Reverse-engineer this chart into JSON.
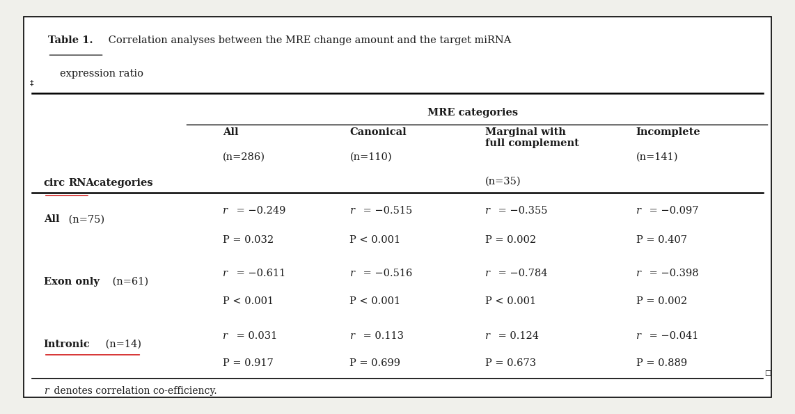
{
  "title_bold": "Table 1.",
  "title_normal": " Correlation analyses between the MRE change amount and the target miRNA",
  "title_line2": "expression ratio",
  "mre_header": "MRE categories",
  "col_header_bold": [
    "All",
    "Canonical",
    "Marginal with\nfull complement",
    "Incomplete"
  ],
  "col_header_n": [
    "(n=286)",
    "(n=110)",
    "(n=35)",
    "(n=141)"
  ],
  "row_headers": [
    {
      "bold": "All",
      "normal": " (n=75)",
      "underline": false
    },
    {
      "bold": "Exon only",
      "normal": " (n=61)",
      "underline": false
    },
    {
      "bold": "Intronic",
      "normal": " (n=14)",
      "underline": true
    }
  ],
  "data": [
    [
      [
        "r",
        " = −0.249",
        "P = 0.032"
      ],
      [
        "r",
        " = −0.515",
        "P < 0.001"
      ],
      [
        "r",
        " = −0.355",
        "P = 0.002"
      ],
      [
        "r",
        " = −0.097",
        "P = 0.407"
      ]
    ],
    [
      [
        "r",
        " = −0.611",
        "P < 0.001"
      ],
      [
        "r",
        " = −0.516",
        "P < 0.001"
      ],
      [
        "r",
        " = −0.784",
        "P < 0.001"
      ],
      [
        "r",
        " = −0.398",
        "P = 0.002"
      ]
    ],
    [
      [
        "r",
        " = 0.031",
        "P = 0.917"
      ],
      [
        "r",
        " = 0.113",
        "P = 0.699"
      ],
      [
        "r",
        " = 0.124",
        "P = 0.673"
      ],
      [
        "r",
        " = −0.041",
        "P = 0.889"
      ]
    ]
  ],
  "footnote_italic": "r",
  "footnote_normal": " denotes correlation co-efficiency.",
  "bg_color": "#f0f0eb",
  "table_bg": "#ffffff",
  "border_color": "#000000",
  "text_color": "#1a1a1a",
  "red_color": "#cc0000"
}
